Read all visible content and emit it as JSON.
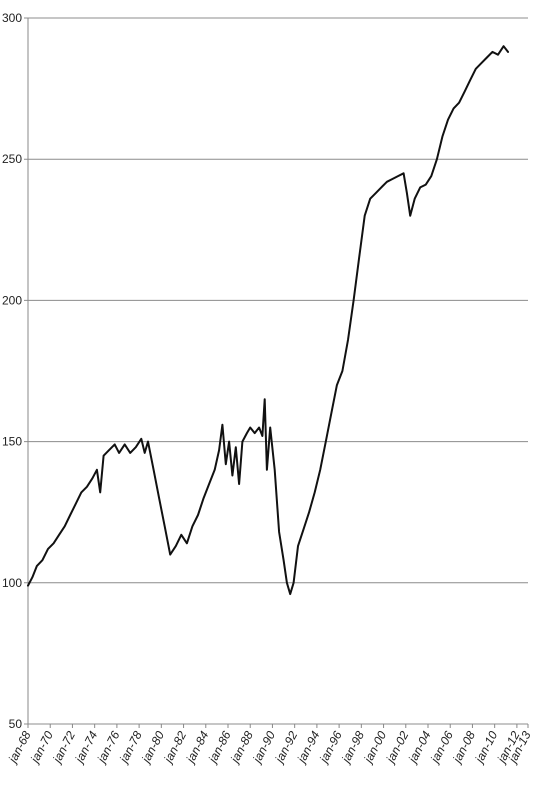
{
  "chart_data": {
    "type": "line",
    "title": "",
    "xlabel": "",
    "ylabel": "",
    "ylim": [
      50,
      300
    ],
    "y_ticks": [
      50,
      100,
      150,
      200,
      250,
      300
    ],
    "x_tick_labels": [
      "jan-68",
      "jan-70",
      "jan-72",
      "jan-74",
      "jan-76",
      "jan-78",
      "jan-80",
      "jan-82",
      "jan-84",
      "jan-86",
      "jan-88",
      "jan-90",
      "jan-92",
      "jan-94",
      "jan-96",
      "jan-98",
      "jan-00",
      "jan-02",
      "jan-04",
      "jan-06",
      "jan-08",
      "jan-10",
      "jan-12",
      "jan-13"
    ],
    "grid": "horizontal",
    "legend": "none",
    "line_color": "#111111",
    "series": [
      {
        "points": [
          [
            1968.0,
            99
          ],
          [
            1968.4,
            102
          ],
          [
            1968.8,
            106
          ],
          [
            1969.3,
            108
          ],
          [
            1969.8,
            112
          ],
          [
            1970.3,
            114
          ],
          [
            1970.8,
            117
          ],
          [
            1971.3,
            120
          ],
          [
            1971.8,
            124
          ],
          [
            1972.3,
            128
          ],
          [
            1972.8,
            132
          ],
          [
            1973.3,
            134
          ],
          [
            1973.8,
            137
          ],
          [
            1974.2,
            140
          ],
          [
            1974.5,
            132
          ],
          [
            1974.8,
            145
          ],
          [
            1975.3,
            147
          ],
          [
            1975.8,
            149
          ],
          [
            1976.2,
            146
          ],
          [
            1976.7,
            149
          ],
          [
            1977.2,
            146
          ],
          [
            1977.7,
            148
          ],
          [
            1978.2,
            151
          ],
          [
            1978.5,
            146
          ],
          [
            1978.8,
            150
          ],
          [
            1979.3,
            140
          ],
          [
            1979.8,
            130
          ],
          [
            1980.3,
            120
          ],
          [
            1980.8,
            110
          ],
          [
            1981.3,
            113
          ],
          [
            1981.8,
            117
          ],
          [
            1982.3,
            114
          ],
          [
            1982.8,
            120
          ],
          [
            1983.3,
            124
          ],
          [
            1983.8,
            130
          ],
          [
            1984.3,
            135
          ],
          [
            1984.8,
            140
          ],
          [
            1985.2,
            147
          ],
          [
            1985.5,
            156
          ],
          [
            1985.8,
            142
          ],
          [
            1986.1,
            150
          ],
          [
            1986.4,
            138
          ],
          [
            1986.7,
            148
          ],
          [
            1987.0,
            135
          ],
          [
            1987.3,
            150
          ],
          [
            1987.7,
            153
          ],
          [
            1988.0,
            155
          ],
          [
            1988.4,
            153
          ],
          [
            1988.8,
            155
          ],
          [
            1989.1,
            152
          ],
          [
            1989.3,
            165
          ],
          [
            1989.5,
            140
          ],
          [
            1989.8,
            155
          ],
          [
            1990.2,
            140
          ],
          [
            1990.6,
            118
          ],
          [
            1991.0,
            108
          ],
          [
            1991.3,
            100
          ],
          [
            1991.6,
            96
          ],
          [
            1991.9,
            100
          ],
          [
            1992.3,
            113
          ],
          [
            1992.8,
            119
          ],
          [
            1993.3,
            125
          ],
          [
            1993.8,
            132
          ],
          [
            1994.3,
            140
          ],
          [
            1994.8,
            150
          ],
          [
            1995.3,
            160
          ],
          [
            1995.8,
            170
          ],
          [
            1996.3,
            175
          ],
          [
            1996.8,
            186
          ],
          [
            1997.3,
            200
          ],
          [
            1997.8,
            215
          ],
          [
            1998.3,
            230
          ],
          [
            1998.8,
            236
          ],
          [
            1999.3,
            238
          ],
          [
            1999.8,
            240
          ],
          [
            2000.3,
            242
          ],
          [
            2000.8,
            243
          ],
          [
            2001.3,
            244
          ],
          [
            2001.8,
            245
          ],
          [
            2002.1,
            238
          ],
          [
            2002.4,
            230
          ],
          [
            2002.8,
            236
          ],
          [
            2003.3,
            240
          ],
          [
            2003.8,
            241
          ],
          [
            2004.3,
            244
          ],
          [
            2004.8,
            250
          ],
          [
            2005.3,
            258
          ],
          [
            2005.8,
            264
          ],
          [
            2006.3,
            268
          ],
          [
            2006.8,
            270
          ],
          [
            2007.3,
            274
          ],
          [
            2007.8,
            278
          ],
          [
            2008.3,
            282
          ],
          [
            2008.8,
            284
          ],
          [
            2009.3,
            286
          ],
          [
            2009.8,
            288
          ],
          [
            2010.3,
            287
          ],
          [
            2010.8,
            290
          ],
          [
            2011.2,
            288
          ]
        ]
      }
    ]
  }
}
